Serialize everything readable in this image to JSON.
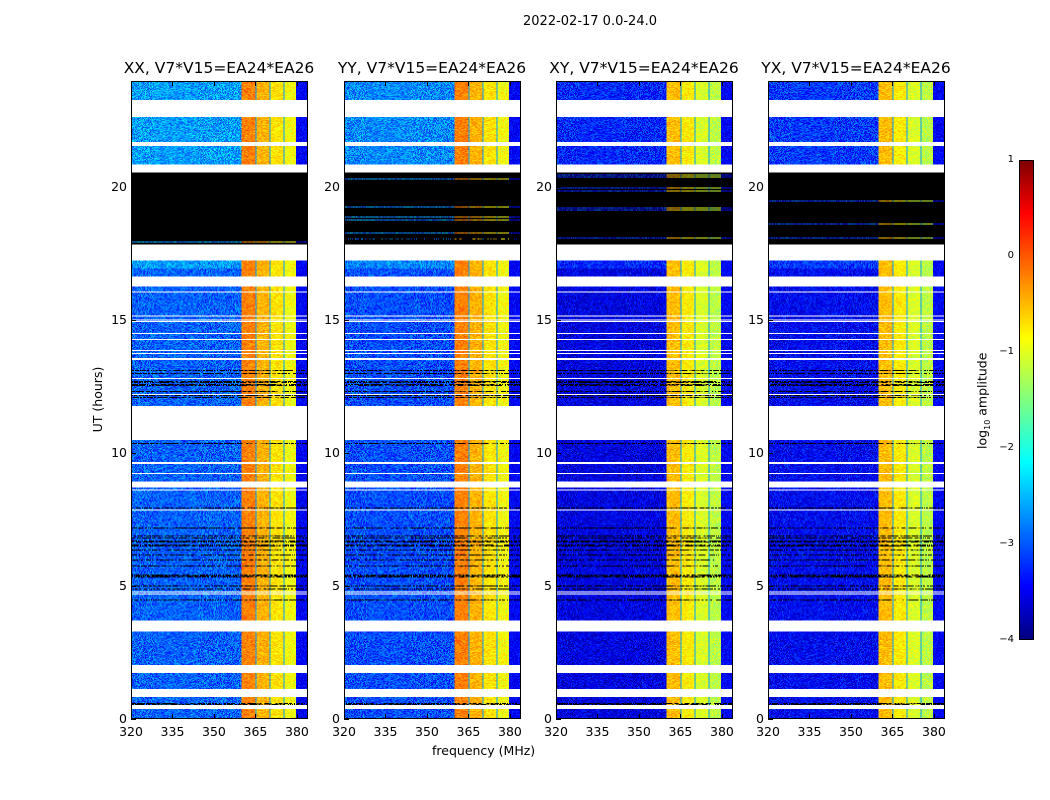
{
  "chart_data": {
    "type": "heatmap",
    "title": "2022-02-17 0.0-24.0",
    "xlabel": "frequency (MHz)",
    "ylabel": "UT (hours)",
    "xlim": [
      320,
      384
    ],
    "ylim": [
      0,
      24
    ],
    "xticks": [
      "320",
      "335",
      "350",
      "365",
      "380"
    ],
    "xtick_values": [
      320,
      335,
      350,
      365,
      380
    ],
    "yticks": [
      "0",
      "5",
      "10",
      "15",
      "20"
    ],
    "ytick_values": [
      0,
      5,
      10,
      15,
      20
    ],
    "panels": [
      {
        "title": "XX, V7*V15=EA24*EA26",
        "base_level": -2.6
      },
      {
        "title": "YY, V7*V15=EA24*EA26",
        "base_level": -2.7
      },
      {
        "title": "XY, V7*V15=EA24*EA26",
        "base_level": -3.2
      },
      {
        "title": "YX, V7*V15=EA24*EA26",
        "base_level": -3.1
      }
    ],
    "strong_band_mhz": [
      360,
      380
    ],
    "strong_band_level": -0.6,
    "flagged_blank_hours": [
      [
        22.7,
        23.35
      ],
      [
        21.6,
        21.75
      ],
      [
        20.6,
        20.9
      ],
      [
        17.3,
        17.9
      ],
      [
        16.3,
        16.7
      ],
      [
        10.5,
        11.8
      ],
      [
        9.6,
        9.7
      ],
      [
        8.7,
        8.95
      ],
      [
        3.3,
        3.7
      ],
      [
        1.7,
        2.0
      ],
      [
        0.8,
        1.1
      ],
      [
        0.35,
        0.5
      ]
    ],
    "flagged_zero_hours": [
      [
        17.9,
        20.6
      ]
    ],
    "colorbar": {
      "label": "log10 amplitude",
      "label_main": "log",
      "label_sub": "10",
      "label_rest": " amplitude",
      "range": [
        -4,
        1
      ],
      "ticks": [
        "1",
        "0",
        "−1",
        "−2",
        "−3",
        "−4"
      ],
      "tick_values": [
        1,
        0,
        -1,
        -2,
        -3,
        -4
      ],
      "colormap": "jet"
    }
  }
}
